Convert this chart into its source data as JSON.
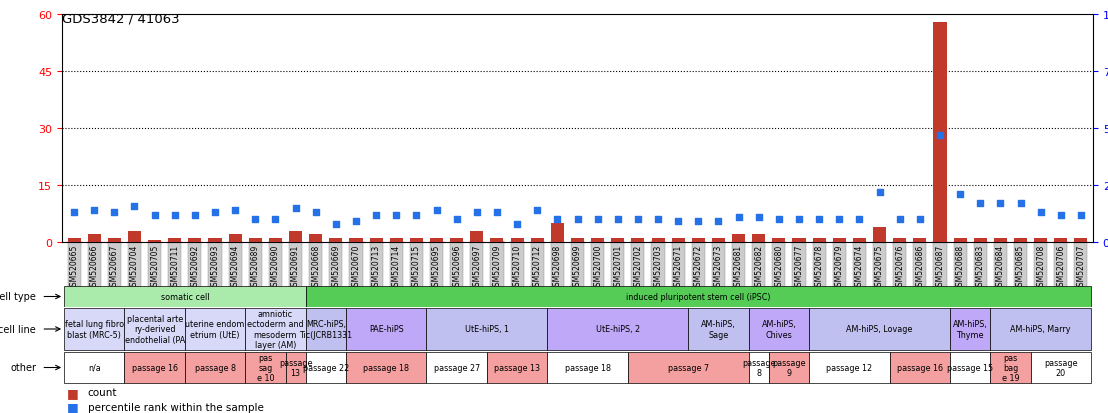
{
  "title": "GDS3842 / 41063",
  "samples": [
    "GSM520665",
    "GSM520666",
    "GSM520667",
    "GSM520704",
    "GSM520705",
    "GSM520711",
    "GSM520692",
    "GSM520693",
    "GSM520694",
    "GSM520689",
    "GSM520690",
    "GSM520691",
    "GSM520668",
    "GSM520669",
    "GSM520670",
    "GSM520713",
    "GSM520714",
    "GSM520715",
    "GSM520695",
    "GSM520696",
    "GSM520697",
    "GSM520709",
    "GSM520710",
    "GSM520712",
    "GSM520698",
    "GSM520699",
    "GSM520700",
    "GSM520701",
    "GSM520702",
    "GSM520703",
    "GSM520671",
    "GSM520672",
    "GSM520673",
    "GSM520681",
    "GSM520682",
    "GSM520680",
    "GSM520677",
    "GSM520678",
    "GSM520679",
    "GSM520674",
    "GSM520675",
    "GSM520676",
    "GSM520686",
    "GSM520687",
    "GSM520688",
    "GSM520683",
    "GSM520684",
    "GSM520685",
    "GSM520708",
    "GSM520706",
    "GSM520707"
  ],
  "counts": [
    1,
    2,
    1,
    3,
    0.5,
    1,
    1,
    1,
    2,
    1,
    1,
    3,
    2,
    1,
    1,
    1,
    1,
    1,
    1,
    1,
    3,
    1,
    1,
    1,
    5,
    1,
    1,
    1,
    1,
    1,
    1,
    1,
    1,
    2,
    2,
    1,
    1,
    1,
    1,
    1,
    4,
    1,
    1,
    58,
    1,
    1,
    1,
    1,
    1,
    1,
    1
  ],
  "percentiles": [
    13,
    14,
    13,
    16,
    12,
    12,
    12,
    13,
    14,
    10,
    10,
    15,
    13,
    8,
    9,
    12,
    12,
    12,
    14,
    10,
    13,
    13,
    8,
    14,
    10,
    10,
    10,
    10,
    10,
    10,
    9,
    9,
    9,
    11,
    11,
    10,
    10,
    10,
    10,
    10,
    22,
    10,
    10,
    47,
    21,
    17,
    17,
    17,
    13,
    12,
    12
  ],
  "ylim_left": [
    0,
    60
  ],
  "ylim_right": [
    0,
    100
  ],
  "yticks_left": [
    0,
    15,
    30,
    45,
    60
  ],
  "yticks_right": [
    0,
    25,
    50,
    75,
    100
  ],
  "bar_color": "#c0392b",
  "dot_color": "#2471e8",
  "cell_type_groups": [
    {
      "label": "somatic cell",
      "start": 0,
      "end": 12,
      "color": "#aaeaaa"
    },
    {
      "label": "induced pluripotent stem cell (iPSC)",
      "start": 12,
      "end": 51,
      "color": "#55cc55"
    }
  ],
  "cell_line_groups": [
    {
      "label": "fetal lung fibro\nblast (MRC-5)",
      "start": 0,
      "end": 3,
      "color": "#d8d8f8"
    },
    {
      "label": "placental arte\nry-derived\nendothelial (PA",
      "start": 3,
      "end": 6,
      "color": "#d8d8f8"
    },
    {
      "label": "uterine endom\netrium (UtE)",
      "start": 6,
      "end": 9,
      "color": "#d8d8f8"
    },
    {
      "label": "amniotic\nectoderm and\nmesoderm\nlayer (AM)",
      "start": 9,
      "end": 12,
      "color": "#d8d8f8"
    },
    {
      "label": "MRC-hiPS,\nTic(JCRB1331",
      "start": 12,
      "end": 14,
      "color": "#c0c0f0"
    },
    {
      "label": "PAE-hiPS",
      "start": 14,
      "end": 18,
      "color": "#c0a8f8"
    },
    {
      "label": "UtE-hiPS, 1",
      "start": 18,
      "end": 24,
      "color": "#c0c0f0"
    },
    {
      "label": "UtE-hiPS, 2",
      "start": 24,
      "end": 31,
      "color": "#c0a8f8"
    },
    {
      "label": "AM-hiPS,\nSage",
      "start": 31,
      "end": 34,
      "color": "#c0c0f0"
    },
    {
      "label": "AM-hiPS,\nChives",
      "start": 34,
      "end": 37,
      "color": "#c0a8f8"
    },
    {
      "label": "AM-hiPS, Lovage",
      "start": 37,
      "end": 44,
      "color": "#c0c0f0"
    },
    {
      "label": "AM-hiPS,\nThyme",
      "start": 44,
      "end": 46,
      "color": "#c0a8f8"
    },
    {
      "label": "AM-hiPS, Marry",
      "start": 46,
      "end": 51,
      "color": "#c0c0f0"
    }
  ],
  "other_groups": [
    {
      "label": "n/a",
      "start": 0,
      "end": 3,
      "color": "#ffffff"
    },
    {
      "label": "passage 16",
      "start": 3,
      "end": 6,
      "color": "#f4a0a0"
    },
    {
      "label": "passage 8",
      "start": 6,
      "end": 9,
      "color": "#f4a0a0"
    },
    {
      "label": "pas\nsag\ne 10",
      "start": 9,
      "end": 11,
      "color": "#f4a0a0"
    },
    {
      "label": "passage\n13",
      "start": 11,
      "end": 12,
      "color": "#f4a0a0"
    },
    {
      "label": "passage 22",
      "start": 12,
      "end": 14,
      "color": "#ffffff"
    },
    {
      "label": "passage 18",
      "start": 14,
      "end": 18,
      "color": "#f4a0a0"
    },
    {
      "label": "passage 27",
      "start": 18,
      "end": 21,
      "color": "#ffffff"
    },
    {
      "label": "passage 13",
      "start": 21,
      "end": 24,
      "color": "#f4a0a0"
    },
    {
      "label": "passage 18",
      "start": 24,
      "end": 28,
      "color": "#ffffff"
    },
    {
      "label": "passage 7",
      "start": 28,
      "end": 34,
      "color": "#f4a0a0"
    },
    {
      "label": "passage\n8",
      "start": 34,
      "end": 35,
      "color": "#ffffff"
    },
    {
      "label": "passage\n9",
      "start": 35,
      "end": 37,
      "color": "#f4a0a0"
    },
    {
      "label": "passage 12",
      "start": 37,
      "end": 41,
      "color": "#ffffff"
    },
    {
      "label": "passage 16",
      "start": 41,
      "end": 44,
      "color": "#f4a0a0"
    },
    {
      "label": "passage 15",
      "start": 44,
      "end": 46,
      "color": "#ffffff"
    },
    {
      "label": "pas\nbag\ne 19",
      "start": 46,
      "end": 48,
      "color": "#f4a0a0"
    },
    {
      "label": "passage\n20",
      "start": 48,
      "end": 51,
      "color": "#ffffff"
    }
  ]
}
